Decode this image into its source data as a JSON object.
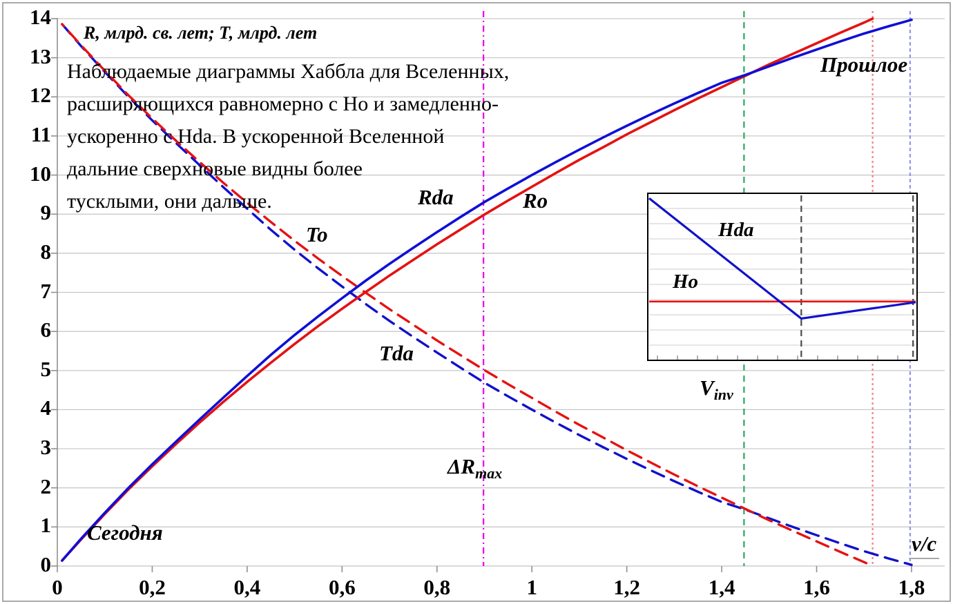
{
  "figure": {
    "axis_note": "R, млрд. св. лет; Т, млрд. лет",
    "annotation": "Наблюдаемые диаграммы Хаббла для Вселенных,\nрасширяющихся равномерно с Ho и замедленно-\nускоренно с Hda. В ускоренной Вселенной\nдальние сверхновые видны более\nтусклыми, они дальше.",
    "labels": {
      "rda": "Rda",
      "ro": "Ro",
      "to": "To",
      "tda": "Tda",
      "segodnya": "Сегодня",
      "proshloe": "Прошлое",
      "vc": "v/c",
      "delta_r": "ΔR",
      "delta_r_sub": "max",
      "v_inv": "V",
      "v_inv_sub": "inv",
      "hda": "Hda",
      "ho": "Ho"
    }
  },
  "chart_data": {
    "type": "line",
    "title": "Наблюдаемые диаграммы Хаббла для Вселенных, расширяющихся равномерно с Ho и замедленно-ускоренно с Hda",
    "xlabel": "v/c",
    "ylabel": "R, млрд. св. лет; Т, млрд. лет",
    "xlim": [
      0,
      1.8
    ],
    "ylim": [
      0,
      14
    ],
    "grid": "horizontal",
    "x_ticks": [
      {
        "value": 0,
        "label": "0"
      },
      {
        "value": 0.2,
        "label": "0,2"
      },
      {
        "value": 0.4,
        "label": "0,4"
      },
      {
        "value": 0.6,
        "label": "0,6"
      },
      {
        "value": 0.8,
        "label": "0,8"
      },
      {
        "value": 1.0,
        "label": "1"
      },
      {
        "value": 1.2,
        "label": "1,2"
      },
      {
        "value": 1.4,
        "label": "1,4"
      },
      {
        "value": 1.6,
        "label": "1,6"
      },
      {
        "value": 1.8,
        "label": "1,8"
      }
    ],
    "y_ticks": [
      {
        "value": 0,
        "label": "0"
      },
      {
        "value": 1,
        "label": "1"
      },
      {
        "value": 2,
        "label": "2"
      },
      {
        "value": 3,
        "label": "3"
      },
      {
        "value": 4,
        "label": "4"
      },
      {
        "value": 5,
        "label": "5"
      },
      {
        "value": 6,
        "label": "6"
      },
      {
        "value": 7,
        "label": "7"
      },
      {
        "value": 8,
        "label": "8"
      },
      {
        "value": 9,
        "label": "9"
      },
      {
        "value": 10,
        "label": "10"
      },
      {
        "value": 11,
        "label": "11"
      },
      {
        "value": 12,
        "label": "12"
      },
      {
        "value": 13,
        "label": "13"
      },
      {
        "value": 14,
        "label": "14"
      }
    ],
    "series": [
      {
        "name": "Tda",
        "color": "#1111CC",
        "style": "dashed",
        "points": [
          [
            0.01,
            13.86
          ],
          [
            0.05,
            13.3
          ],
          [
            0.1,
            12.64
          ],
          [
            0.15,
            12.0
          ],
          [
            0.2,
            11.4
          ],
          [
            0.25,
            10.82
          ],
          [
            0.3,
            10.25
          ],
          [
            0.35,
            9.69
          ],
          [
            0.4,
            9.14
          ],
          [
            0.45,
            8.6
          ],
          [
            0.5,
            8.09
          ],
          [
            0.55,
            7.61
          ],
          [
            0.6,
            7.15
          ],
          [
            0.65,
            6.7
          ],
          [
            0.7,
            6.27
          ],
          [
            0.75,
            5.86
          ],
          [
            0.8,
            5.46
          ],
          [
            0.85,
            5.07
          ],
          [
            0.9,
            4.69
          ],
          [
            0.95,
            4.34
          ],
          [
            1.0,
            4.0
          ],
          [
            1.05,
            3.67
          ],
          [
            1.1,
            3.35
          ],
          [
            1.15,
            3.04
          ],
          [
            1.2,
            2.74
          ],
          [
            1.25,
            2.45
          ],
          [
            1.3,
            2.17
          ],
          [
            1.35,
            1.9
          ],
          [
            1.4,
            1.64
          ],
          [
            1.45,
            1.44
          ],
          [
            1.5,
            1.22
          ],
          [
            1.55,
            1.0
          ],
          [
            1.6,
            0.79
          ],
          [
            1.65,
            0.58
          ],
          [
            1.7,
            0.38
          ],
          [
            1.75,
            0.2
          ],
          [
            1.8,
            0.03
          ]
        ]
      },
      {
        "name": "To",
        "color": "#E51212",
        "style": "dashed",
        "points": [
          [
            0.01,
            13.86
          ],
          [
            0.05,
            13.32
          ],
          [
            0.1,
            12.67
          ],
          [
            0.15,
            12.04
          ],
          [
            0.2,
            11.45
          ],
          [
            0.25,
            10.88
          ],
          [
            0.3,
            10.33
          ],
          [
            0.35,
            9.8
          ],
          [
            0.4,
            9.29
          ],
          [
            0.45,
            8.8
          ],
          [
            0.5,
            8.32
          ],
          [
            0.55,
            7.86
          ],
          [
            0.6,
            7.42
          ],
          [
            0.65,
            6.99
          ],
          [
            0.7,
            6.57
          ],
          [
            0.75,
            6.17
          ],
          [
            0.8,
            5.77
          ],
          [
            0.85,
            5.39
          ],
          [
            0.9,
            5.01
          ],
          [
            0.95,
            4.65
          ],
          [
            1.0,
            4.3
          ],
          [
            1.05,
            3.95
          ],
          [
            1.1,
            3.61
          ],
          [
            1.15,
            3.29
          ],
          [
            1.2,
            2.96
          ],
          [
            1.25,
            2.65
          ],
          [
            1.3,
            2.34
          ],
          [
            1.35,
            2.04
          ],
          [
            1.4,
            1.75
          ],
          [
            1.45,
            1.46
          ],
          [
            1.5,
            1.17
          ],
          [
            1.55,
            0.9
          ],
          [
            1.6,
            0.63
          ],
          [
            1.65,
            0.36
          ],
          [
            1.7,
            0.1
          ],
          [
            1.718,
            0.0
          ]
        ]
      },
      {
        "name": "Ro",
        "color": "#E51212",
        "style": "solid",
        "points": [
          [
            0.01,
            0.14
          ],
          [
            0.05,
            0.68
          ],
          [
            0.1,
            1.33
          ],
          [
            0.15,
            1.96
          ],
          [
            0.2,
            2.55
          ],
          [
            0.25,
            3.12
          ],
          [
            0.3,
            3.67
          ],
          [
            0.35,
            4.2
          ],
          [
            0.4,
            4.71
          ],
          [
            0.45,
            5.2
          ],
          [
            0.5,
            5.68
          ],
          [
            0.55,
            6.14
          ],
          [
            0.6,
            6.58
          ],
          [
            0.65,
            7.01
          ],
          [
            0.7,
            7.43
          ],
          [
            0.75,
            7.83
          ],
          [
            0.8,
            8.23
          ],
          [
            0.85,
            8.61
          ],
          [
            0.9,
            8.99
          ],
          [
            0.95,
            9.35
          ],
          [
            1.0,
            9.7
          ],
          [
            1.05,
            10.05
          ],
          [
            1.1,
            10.39
          ],
          [
            1.15,
            10.71
          ],
          [
            1.2,
            11.04
          ],
          [
            1.25,
            11.35
          ],
          [
            1.3,
            11.66
          ],
          [
            1.35,
            11.96
          ],
          [
            1.4,
            12.25
          ],
          [
            1.45,
            12.54
          ],
          [
            1.5,
            12.83
          ],
          [
            1.55,
            13.1
          ],
          [
            1.6,
            13.37
          ],
          [
            1.65,
            13.64
          ],
          [
            1.7,
            13.9
          ],
          [
            1.718,
            14.0
          ]
        ]
      },
      {
        "name": "Rda",
        "color": "#0F0FD6",
        "style": "solid",
        "points": [
          [
            0.01,
            0.14
          ],
          [
            0.05,
            0.7
          ],
          [
            0.1,
            1.36
          ],
          [
            0.15,
            2.0
          ],
          [
            0.2,
            2.6
          ],
          [
            0.25,
            3.18
          ],
          [
            0.3,
            3.75
          ],
          [
            0.35,
            4.31
          ],
          [
            0.4,
            4.86
          ],
          [
            0.45,
            5.4
          ],
          [
            0.5,
            5.91
          ],
          [
            0.55,
            6.39
          ],
          [
            0.6,
            6.85
          ],
          [
            0.65,
            7.3
          ],
          [
            0.7,
            7.73
          ],
          [
            0.75,
            8.14
          ],
          [
            0.8,
            8.54
          ],
          [
            0.85,
            8.93
          ],
          [
            0.9,
            9.31
          ],
          [
            0.95,
            9.66
          ],
          [
            1.0,
            10.0
          ],
          [
            1.05,
            10.33
          ],
          [
            1.1,
            10.65
          ],
          [
            1.15,
            10.96
          ],
          [
            1.2,
            11.26
          ],
          [
            1.25,
            11.55
          ],
          [
            1.3,
            11.83
          ],
          [
            1.35,
            12.1
          ],
          [
            1.4,
            12.36
          ],
          [
            1.45,
            12.56
          ],
          [
            1.5,
            12.78
          ],
          [
            1.55,
            13.0
          ],
          [
            1.6,
            13.21
          ],
          [
            1.65,
            13.42
          ],
          [
            1.7,
            13.62
          ],
          [
            1.75,
            13.8
          ],
          [
            1.8,
            13.97
          ]
        ]
      }
    ],
    "vertical_markers": [
      {
        "name": "delta-r-max-line",
        "x": 0.898,
        "color": "#EE00EE",
        "style": "dashdot",
        "label": "ΔRmax"
      },
      {
        "name": "v-inv-line",
        "x": 1.447,
        "color": "#33AA66",
        "style": "dashed",
        "label": "Vinv"
      },
      {
        "name": "ro-end-line",
        "x": 1.718,
        "color": "#F08585",
        "style": "dotted",
        "label": ""
      },
      {
        "name": "rda-end-line",
        "x": 1.797,
        "color": "#9595EE",
        "style": "fine-dashed",
        "label": ""
      }
    ],
    "inset": {
      "type": "line",
      "h_gridlines": 10,
      "ho_level": 0.648,
      "hda_points": [
        [
          0.005,
          0.03
        ],
        [
          0.57,
          0.75
        ],
        [
          0.995,
          0.652
        ]
      ],
      "dashed_verticals": [
        0.57,
        0.985
      ],
      "series_labels": [
        "Hda",
        "Ho"
      ],
      "colors": {
        "hda": "#1111CC",
        "ho": "#E51212"
      }
    }
  }
}
